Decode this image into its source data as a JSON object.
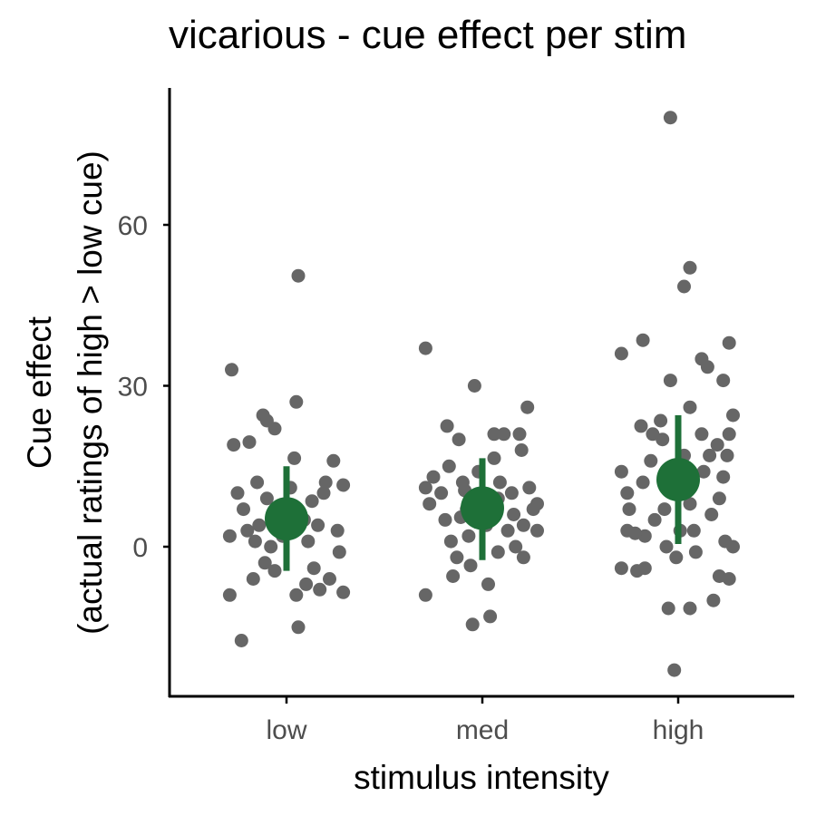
{
  "chart_data": {
    "type": "scatter",
    "title": "vicarious - cue effect per stim",
    "xlabel": "stimulus intensity",
    "ylabel_line1": "Cue effect",
    "ylabel_line2": "(actual ratings of high > low cue)",
    "categories": [
      "low",
      "med",
      "high"
    ],
    "ylim": [
      -28,
      86
    ],
    "yticks": [
      0,
      30,
      60
    ],
    "grid": false,
    "colors": {
      "points": "#666666",
      "summary": "#1e7038",
      "axis": "#000000",
      "tick_label": "#4d4d4d"
    },
    "points": [
      {
        "x": "low",
        "jitter": -0.28,
        "y": 33
      },
      {
        "x": "low",
        "jitter": -0.23,
        "y": -17.5
      },
      {
        "x": "low",
        "jitter": -0.27,
        "y": 19
      },
      {
        "x": "low",
        "jitter": -0.29,
        "y": 2
      },
      {
        "x": "low",
        "jitter": -0.29,
        "y": -9
      },
      {
        "x": "low",
        "jitter": -0.25,
        "y": 10
      },
      {
        "x": "low",
        "jitter": -0.22,
        "y": 7
      },
      {
        "x": "low",
        "jitter": -0.2,
        "y": 3
      },
      {
        "x": "low",
        "jitter": -0.17,
        "y": -6
      },
      {
        "x": "low",
        "jitter": -0.19,
        "y": 19.5
      },
      {
        "x": "low",
        "jitter": -0.12,
        "y": 24.5
      },
      {
        "x": "low",
        "jitter": -0.1,
        "y": 23.5
      },
      {
        "x": "low",
        "jitter": -0.15,
        "y": 12
      },
      {
        "x": "low",
        "jitter": -0.1,
        "y": 9
      },
      {
        "x": "low",
        "jitter": -0.14,
        "y": 4
      },
      {
        "x": "low",
        "jitter": -0.08,
        "y": 0
      },
      {
        "x": "low",
        "jitter": -0.11,
        "y": -3
      },
      {
        "x": "low",
        "jitter": -0.06,
        "y": -4.5
      },
      {
        "x": "low",
        "jitter": -0.06,
        "y": 22
      },
      {
        "x": "low",
        "jitter": -0.05,
        "y": 6
      },
      {
        "x": "low",
        "jitter": -0.02,
        "y": 2
      },
      {
        "x": "low",
        "jitter": 0.02,
        "y": 11
      },
      {
        "x": "low",
        "jitter": 0.04,
        "y": 16.5
      },
      {
        "x": "low",
        "jitter": 0.05,
        "y": 27
      },
      {
        "x": "low",
        "jitter": 0.05,
        "y": -9
      },
      {
        "x": "low",
        "jitter": 0.06,
        "y": -15
      },
      {
        "x": "low",
        "jitter": 0.1,
        "y": -7
      },
      {
        "x": "low",
        "jitter": 0.11,
        "y": 1
      },
      {
        "x": "low",
        "jitter": 0.13,
        "y": 8.5
      },
      {
        "x": "low",
        "jitter": 0.14,
        "y": -4
      },
      {
        "x": "low",
        "jitter": 0.16,
        "y": 4
      },
      {
        "x": "low",
        "jitter": 0.17,
        "y": -8
      },
      {
        "x": "low",
        "jitter": 0.19,
        "y": 10
      },
      {
        "x": "low",
        "jitter": 0.2,
        "y": 12
      },
      {
        "x": "low",
        "jitter": 0.22,
        "y": -6
      },
      {
        "x": "low",
        "jitter": 0.24,
        "y": 16
      },
      {
        "x": "low",
        "jitter": 0.26,
        "y": 3
      },
      {
        "x": "low",
        "jitter": 0.27,
        "y": -1
      },
      {
        "x": "low",
        "jitter": 0.29,
        "y": 11.5
      },
      {
        "x": "low",
        "jitter": 0.29,
        "y": -8.5
      },
      {
        "x": "low",
        "jitter": 0.06,
        "y": 50.5
      },
      {
        "x": "low",
        "jitter": -0.03,
        "y": 6.5
      },
      {
        "x": "low",
        "jitter": 0.09,
        "y": 5
      },
      {
        "x": "low",
        "jitter": -0.16,
        "y": 1
      },
      {
        "x": "med",
        "jitter": -0.29,
        "y": 37
      },
      {
        "x": "med",
        "jitter": -0.29,
        "y": -9
      },
      {
        "x": "med",
        "jitter": -0.29,
        "y": 11
      },
      {
        "x": "med",
        "jitter": -0.27,
        "y": 8
      },
      {
        "x": "med",
        "jitter": -0.25,
        "y": 13
      },
      {
        "x": "med",
        "jitter": -0.21,
        "y": 10
      },
      {
        "x": "med",
        "jitter": -0.18,
        "y": 22.5
      },
      {
        "x": "med",
        "jitter": -0.17,
        "y": 15
      },
      {
        "x": "med",
        "jitter": -0.19,
        "y": 5
      },
      {
        "x": "med",
        "jitter": -0.16,
        "y": 1
      },
      {
        "x": "med",
        "jitter": -0.13,
        "y": -2
      },
      {
        "x": "med",
        "jitter": -0.15,
        "y": -5.5
      },
      {
        "x": "med",
        "jitter": -0.12,
        "y": 20
      },
      {
        "x": "med",
        "jitter": -0.1,
        "y": 12
      },
      {
        "x": "med",
        "jitter": -0.08,
        "y": 7
      },
      {
        "x": "med",
        "jitter": -0.07,
        "y": 2
      },
      {
        "x": "med",
        "jitter": -0.06,
        "y": -3.5
      },
      {
        "x": "med",
        "jitter": -0.05,
        "y": -14.5
      },
      {
        "x": "med",
        "jitter": -0.02,
        "y": 14
      },
      {
        "x": "med",
        "jitter": 0.02,
        "y": 4
      },
      {
        "x": "med",
        "jitter": 0.03,
        "y": -7
      },
      {
        "x": "med",
        "jitter": 0.04,
        "y": -13
      },
      {
        "x": "med",
        "jitter": 0.06,
        "y": 16.5
      },
      {
        "x": "med",
        "jitter": 0.06,
        "y": 21
      },
      {
        "x": "med",
        "jitter": -0.04,
        "y": 30
      },
      {
        "x": "med",
        "jitter": 0.08,
        "y": 9
      },
      {
        "x": "med",
        "jitter": 0.08,
        "y": -1
      },
      {
        "x": "med",
        "jitter": 0.11,
        "y": 21
      },
      {
        "x": "med",
        "jitter": 0.13,
        "y": 3
      },
      {
        "x": "med",
        "jitter": 0.15,
        "y": 10
      },
      {
        "x": "med",
        "jitter": 0.16,
        "y": 6
      },
      {
        "x": "med",
        "jitter": 0.17,
        "y": 0
      },
      {
        "x": "med",
        "jitter": 0.19,
        "y": 21
      },
      {
        "x": "med",
        "jitter": 0.2,
        "y": 18
      },
      {
        "x": "med",
        "jitter": 0.21,
        "y": 4
      },
      {
        "x": "med",
        "jitter": 0.21,
        "y": -2
      },
      {
        "x": "med",
        "jitter": 0.23,
        "y": 26
      },
      {
        "x": "med",
        "jitter": 0.24,
        "y": 11
      },
      {
        "x": "med",
        "jitter": 0.26,
        "y": 7
      },
      {
        "x": "med",
        "jitter": 0.28,
        "y": 3
      },
      {
        "x": "med",
        "jitter": 0.28,
        "y": 8
      },
      {
        "x": "med",
        "jitter": -0.09,
        "y": 10.5
      },
      {
        "x": "med",
        "jitter": -0.11,
        "y": 5.5
      },
      {
        "x": "med",
        "jitter": 0.09,
        "y": 12
      },
      {
        "x": "high",
        "jitter": -0.29,
        "y": 36
      },
      {
        "x": "high",
        "jitter": -0.29,
        "y": 14
      },
      {
        "x": "high",
        "jitter": -0.29,
        "y": -4
      },
      {
        "x": "high",
        "jitter": -0.26,
        "y": 10
      },
      {
        "x": "high",
        "jitter": -0.25,
        "y": 7
      },
      {
        "x": "high",
        "jitter": -0.26,
        "y": 3
      },
      {
        "x": "high",
        "jitter": -0.21,
        "y": -4.5
      },
      {
        "x": "high",
        "jitter": -0.18,
        "y": 38.5
      },
      {
        "x": "high",
        "jitter": -0.19,
        "y": 22.5
      },
      {
        "x": "high",
        "jitter": -0.18,
        "y": 12
      },
      {
        "x": "high",
        "jitter": -0.17,
        "y": 2
      },
      {
        "x": "high",
        "jitter": -0.17,
        "y": -4
      },
      {
        "x": "high",
        "jitter": -0.14,
        "y": 16
      },
      {
        "x": "high",
        "jitter": -0.12,
        "y": 5
      },
      {
        "x": "high",
        "jitter": -0.09,
        "y": 23.5
      },
      {
        "x": "high",
        "jitter": -0.08,
        "y": 20
      },
      {
        "x": "high",
        "jitter": -0.07,
        "y": 7
      },
      {
        "x": "high",
        "jitter": -0.06,
        "y": 0
      },
      {
        "x": "high",
        "jitter": -0.05,
        "y": -11.5
      },
      {
        "x": "high",
        "jitter": -0.04,
        "y": 31
      },
      {
        "x": "high",
        "jitter": -0.02,
        "y": 10
      },
      {
        "x": "high",
        "jitter": -0.01,
        "y": -2
      },
      {
        "x": "high",
        "jitter": -0.02,
        "y": -23
      },
      {
        "x": "high",
        "jitter": -0.04,
        "y": 80
      },
      {
        "x": "high",
        "jitter": 0.03,
        "y": 17
      },
      {
        "x": "high",
        "jitter": 0.03,
        "y": 48.5
      },
      {
        "x": "high",
        "jitter": 0.06,
        "y": 52
      },
      {
        "x": "high",
        "jitter": 0.06,
        "y": 26
      },
      {
        "x": "high",
        "jitter": 0.06,
        "y": 8
      },
      {
        "x": "high",
        "jitter": 0.06,
        "y": -11.5
      },
      {
        "x": "high",
        "jitter": 0.08,
        "y": 3
      },
      {
        "x": "high",
        "jitter": 0.09,
        "y": -1
      },
      {
        "x": "high",
        "jitter": 0.12,
        "y": 35
      },
      {
        "x": "high",
        "jitter": 0.15,
        "y": 33.5
      },
      {
        "x": "high",
        "jitter": 0.12,
        "y": 21
      },
      {
        "x": "high",
        "jitter": 0.13,
        "y": 14
      },
      {
        "x": "high",
        "jitter": 0.16,
        "y": 17
      },
      {
        "x": "high",
        "jitter": 0.17,
        "y": 6
      },
      {
        "x": "high",
        "jitter": 0.18,
        "y": -10
      },
      {
        "x": "high",
        "jitter": 0.2,
        "y": 19
      },
      {
        "x": "high",
        "jitter": 0.21,
        "y": 9
      },
      {
        "x": "high",
        "jitter": 0.21,
        "y": -5.5
      },
      {
        "x": "high",
        "jitter": 0.23,
        "y": 31
      },
      {
        "x": "high",
        "jitter": 0.23,
        "y": 13
      },
      {
        "x": "high",
        "jitter": 0.24,
        "y": 1
      },
      {
        "x": "high",
        "jitter": 0.26,
        "y": 38
      },
      {
        "x": "high",
        "jitter": 0.26,
        "y": 21
      },
      {
        "x": "high",
        "jitter": 0.28,
        "y": 24.5
      },
      {
        "x": "high",
        "jitter": 0.28,
        "y": 0
      },
      {
        "x": "high",
        "jitter": 0.26,
        "y": -6
      },
      {
        "x": "high",
        "jitter": 0.25,
        "y": 17
      },
      {
        "x": "high",
        "jitter": -0.13,
        "y": 21
      },
      {
        "x": "high",
        "jitter": 0.01,
        "y": 3
      },
      {
        "x": "high",
        "jitter": -0.22,
        "y": 2.5
      }
    ],
    "summary": [
      {
        "x": "low",
        "mean": 5.2,
        "lower": -4.5,
        "upper": 15
      },
      {
        "x": "med",
        "mean": 7.2,
        "lower": -2.5,
        "upper": 16.5
      },
      {
        "x": "high",
        "mean": 12.5,
        "lower": 0.5,
        "upper": 24.5
      }
    ]
  }
}
